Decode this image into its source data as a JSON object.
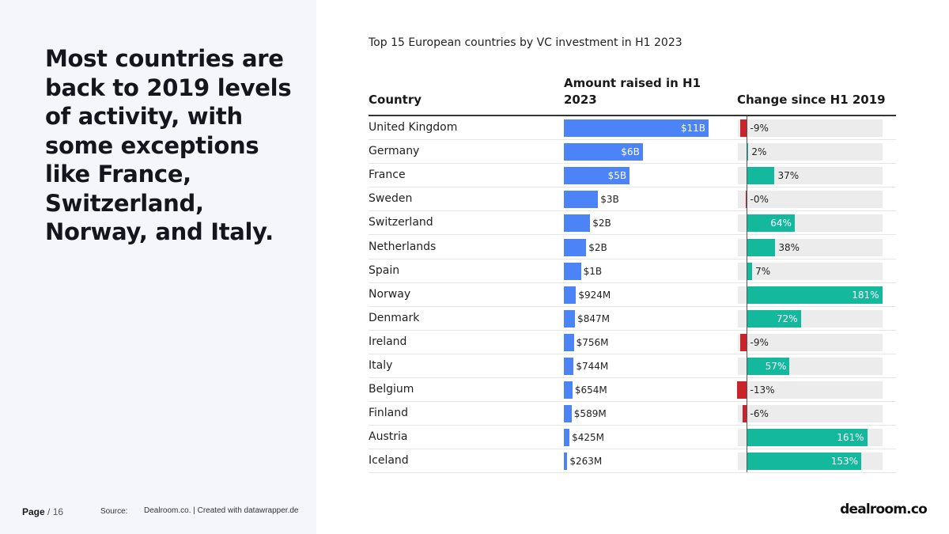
{
  "slide": {
    "headline": "Most countries are back to 2019 levels of activity, with some exceptions like France, Switzerland, Norway, and Italy.",
    "page_label": "Page",
    "page_total": "/ 16",
    "source_label": "Source:",
    "source_text": "Dealroom.co. | Created with datawrapper.de",
    "logo": "dealroom.co"
  },
  "chart_data": {
    "type": "table",
    "title": "Top 15 European countries by VC investment in H1 2023",
    "columns": [
      "Country",
      "Amount raised in H1 2023",
      "Change since H1 2019"
    ],
    "rows": [
      {
        "country": "United Kingdom",
        "amount": 11000,
        "amount_label": "$11B",
        "change": -9,
        "change_label": "-9%"
      },
      {
        "country": "Germany",
        "amount": 6000,
        "amount_label": "$6B",
        "change": 2,
        "change_label": "2%"
      },
      {
        "country": "France",
        "amount": 5000,
        "amount_label": "$5B",
        "change": 37,
        "change_label": "37%"
      },
      {
        "country": "Sweden",
        "amount": 2600,
        "amount_label": "$3B",
        "change": -0.3,
        "change_label": "-0%"
      },
      {
        "country": "Switzerland",
        "amount": 2000,
        "amount_label": "$2B",
        "change": 64,
        "change_label": "64%"
      },
      {
        "country": "Netherlands",
        "amount": 1700,
        "amount_label": "$2B",
        "change": 38,
        "change_label": "38%"
      },
      {
        "country": "Spain",
        "amount": 1300,
        "amount_label": "$1B",
        "change": 7,
        "change_label": "7%"
      },
      {
        "country": "Norway",
        "amount": 924,
        "amount_label": "$924M",
        "change": 181,
        "change_label": "181%"
      },
      {
        "country": "Denmark",
        "amount": 847,
        "amount_label": "$847M",
        "change": 72,
        "change_label": "72%"
      },
      {
        "country": "Ireland",
        "amount": 756,
        "amount_label": "$756M",
        "change": -9,
        "change_label": "-9%"
      },
      {
        "country": "Italy",
        "amount": 744,
        "amount_label": "$744M",
        "change": 57,
        "change_label": "57%"
      },
      {
        "country": "Belgium",
        "amount": 654,
        "amount_label": "$654M",
        "change": -13,
        "change_label": "-13%"
      },
      {
        "country": "Finland",
        "amount": 589,
        "amount_label": "$589M",
        "change": -6,
        "change_label": "-6%"
      },
      {
        "country": "Austria",
        "amount": 425,
        "amount_label": "$425M",
        "change": 161,
        "change_label": "161%"
      },
      {
        "country": "Iceland",
        "amount": 263,
        "amount_label": "$263M",
        "change": 153,
        "change_label": "153%"
      }
    ],
    "amount_max": 11000,
    "change_range": [
      -20,
      181
    ],
    "colors": {
      "amount": "#4c83f7",
      "positive": "#14b89c",
      "negative": "#c8242a",
      "track": "#ececec"
    }
  }
}
